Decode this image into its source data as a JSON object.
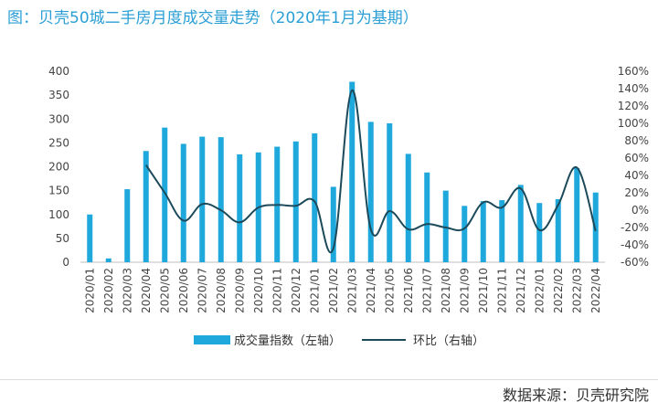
{
  "title": "图：贝壳50城二手房月度成交量走势（2020年1月为基期）",
  "source": "数据来源：贝壳研究院",
  "colors": {
    "bar": "#1fa8dc",
    "line": "#1c4a5a",
    "title": "#2b9fd5"
  },
  "chart_data": {
    "type": "bar",
    "title": "图：贝壳50城二手房月度成交量走势（2020年1月为基期）",
    "categories": [
      "2020/01",
      "2020/02",
      "2020/03",
      "2020/04",
      "2020/05",
      "2020/06",
      "2020/07",
      "2020/08",
      "2020/09",
      "2020/10",
      "2020/11",
      "2020/12",
      "2021/01",
      "2021/02",
      "2021/03",
      "2021/04",
      "2021/05",
      "2021/06",
      "2021/07",
      "2021/08",
      "2021/09",
      "2021/10",
      "2021/11",
      "2021/12",
      "2022/01",
      "2022/02",
      "2022/03",
      "2022/04"
    ],
    "series": [
      {
        "name": "成交量指数（左轴）",
        "type": "bar",
        "axis": "left",
        "values": [
          100,
          8,
          153,
          233,
          282,
          248,
          263,
          262,
          226,
          230,
          242,
          253,
          270,
          158,
          378,
          294,
          291,
          227,
          188,
          150,
          118,
          128,
          130,
          162,
          124,
          132,
          197,
          146
        ]
      },
      {
        "name": "环比（右轴）",
        "type": "line",
        "axis": "right",
        "values": [
          null,
          null,
          null,
          52,
          20,
          -12,
          7,
          0,
          -14,
          3,
          6,
          5,
          10,
          -44,
          138,
          -22,
          -1,
          -22,
          -16,
          -20,
          -21,
          9,
          3,
          25,
          -23,
          6,
          49,
          -24
        ]
      }
    ],
    "y_left": {
      "min": 0,
      "max": 400,
      "step": 50
    },
    "y_right": {
      "min": -60,
      "max": 160,
      "step": 20,
      "unit": "%"
    },
    "legend_position": "bottom",
    "grid": false
  }
}
